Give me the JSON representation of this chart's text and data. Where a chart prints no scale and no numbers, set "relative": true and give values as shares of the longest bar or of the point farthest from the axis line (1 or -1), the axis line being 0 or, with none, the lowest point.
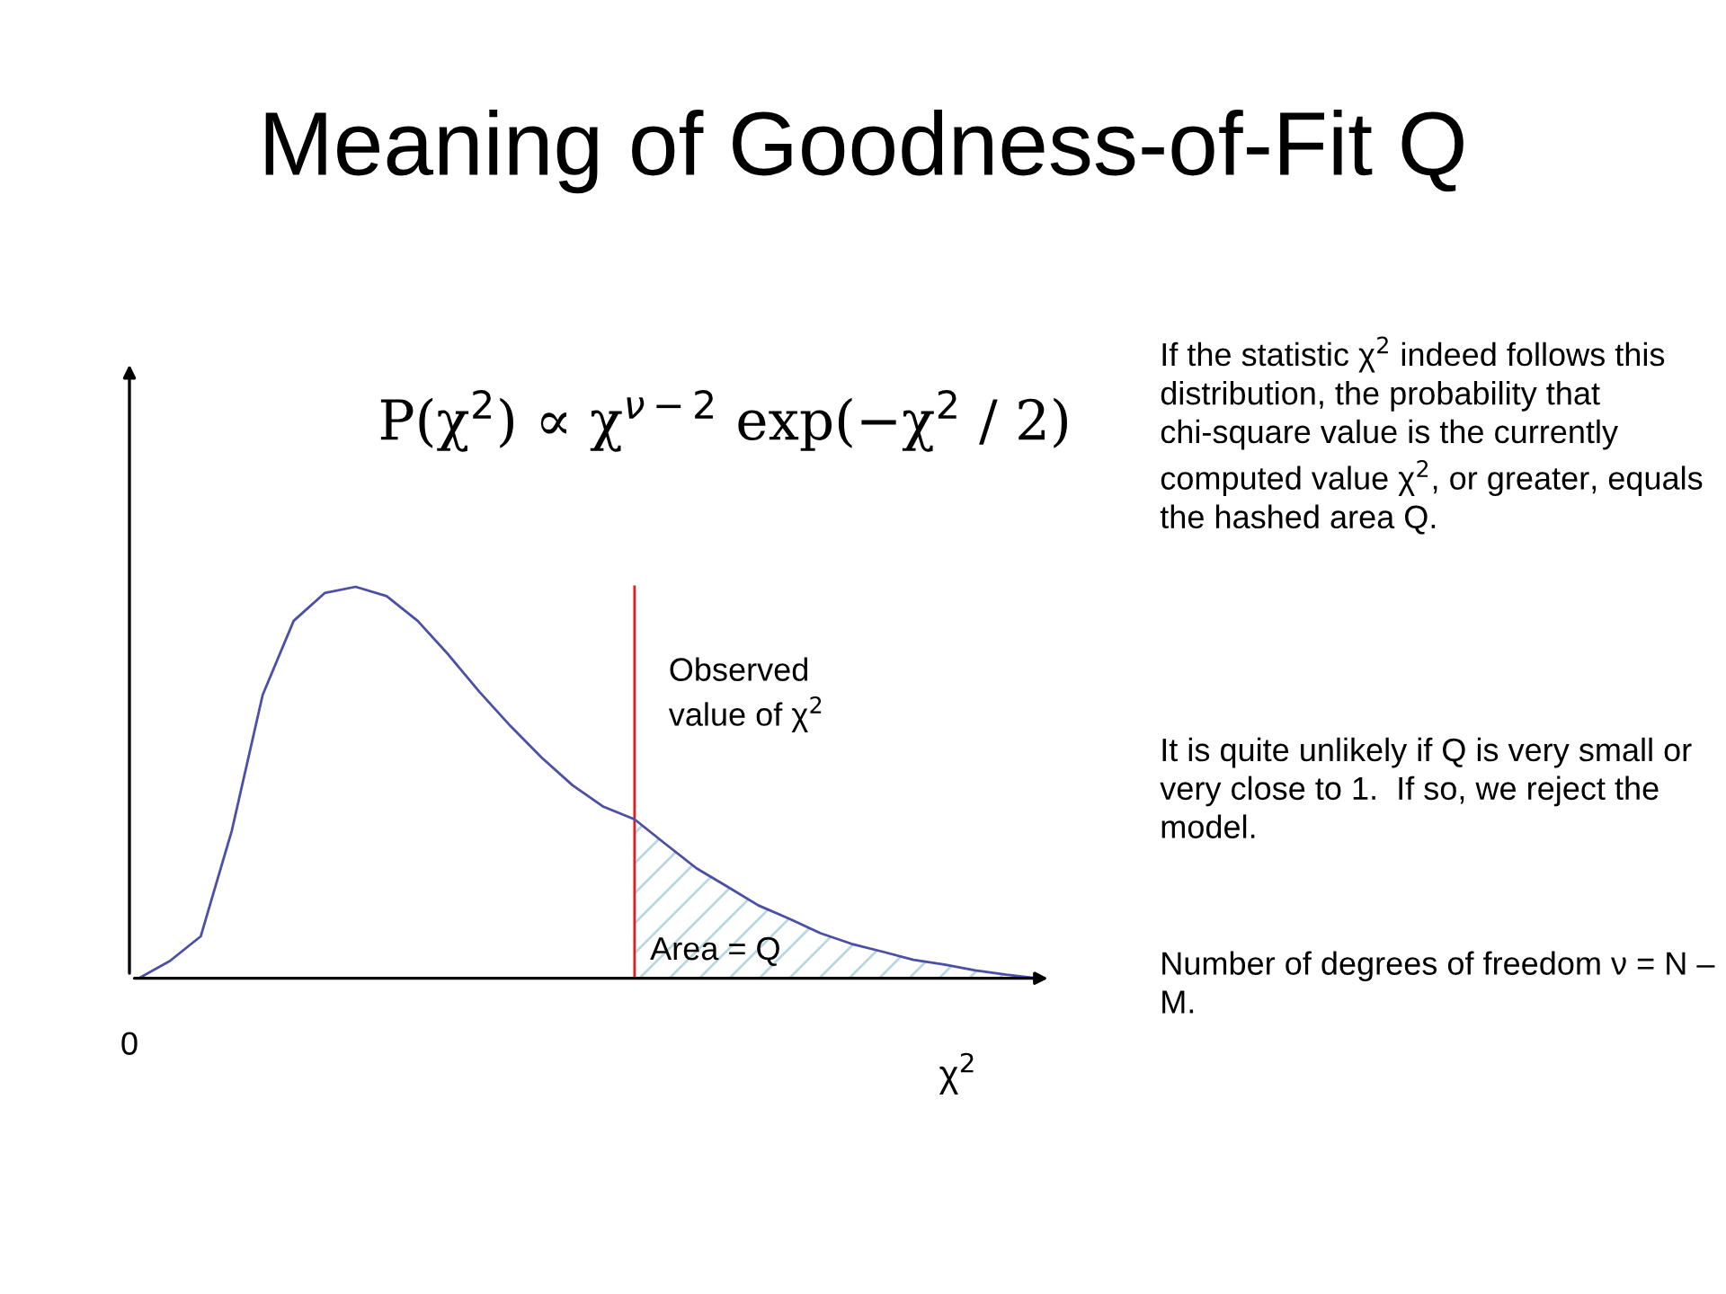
{
  "chart_data": {
    "type": "line",
    "relative": true,
    "title": "Meaning of Goodness-of-Fit Q",
    "xlabel": "χ$^{2}$",
    "categories": [
      null,
      null,
      null,
      null,
      null,
      null,
      null,
      null,
      null,
      null,
      null,
      null,
      null,
      null,
      null,
      null,
      null,
      null,
      null,
      null,
      null,
      null,
      null,
      null,
      null,
      null,
      null,
      null,
      null,
      null
    ],
    "series": [
      {
        "color": "#4b4fa6",
        "values": [
          0,
          0.044,
          0.107,
          0.376,
          0.724,
          0.913,
          0.984,
          1.0,
          0.976,
          0.913,
          0.826,
          0.731,
          0.644,
          0.564,
          0.493,
          0.438,
          0.406,
          0.343,
          0.281,
          0.234,
          0.186,
          0.152,
          0.115,
          0.088,
          0.068,
          0.047,
          0.035,
          0.02,
          0.009,
          0
        ]
      },
      {
        "type": "area",
        "color": "#b8d8e0",
        "values": [
          null,
          null,
          null,
          null,
          null,
          null,
          null,
          null,
          null,
          null,
          null,
          null,
          null,
          null,
          null,
          null,
          0.406,
          0.343,
          0.281,
          0.234,
          0.186,
          0.152,
          0.115,
          0.088,
          0.068,
          0.047,
          0.035,
          0.02,
          0.009,
          0
        ]
      }
    ],
    "annotations": [
      "Observed\nvalue of χ$^{2}$",
      "P(χ$^{2}$) ∝ χ$^{ν−2}$ exp(−χ$^{2}$ / 2)",
      "0",
      "Area = Q",
      "If the statistic χ$^{2}$ indeed follows this distribution, the probability that chi-square value is the currently computed value χ$^{2}$, or greater, equals the hashed area Q.",
      "It is quite unlikely if Q is very small or very close to 1.  If so, we reject the model.",
      "Number of degrees of freedom ν = N – M."
    ],
    "legend": false,
    "marker": "none",
    "line_style": "solid"
  }
}
